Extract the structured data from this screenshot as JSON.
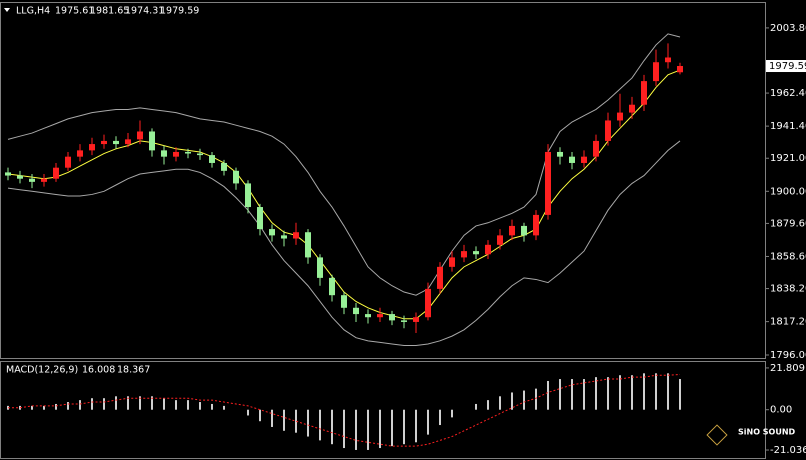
{
  "chart_data": [
    {
      "type": "candlestick",
      "title": "LLG,H4",
      "up_color": "#ff2020",
      "down_color": "#98f098",
      "open": [
        1912,
        1910,
        1908,
        1906,
        1908,
        1915,
        1922,
        1926,
        1930,
        1932,
        1930,
        1933,
        1938,
        1926,
        1922,
        1925,
        1924,
        1923,
        1918,
        1913,
        1905,
        1890,
        1876,
        1872,
        1870,
        1874,
        1858,
        1845,
        1834,
        1826,
        1822,
        1820,
        1822,
        1818,
        1817,
        1820,
        1838,
        1852,
        1858,
        1862,
        1860,
        1866,
        1872,
        1878,
        1872,
        1885,
        1925,
        1922,
        1918,
        1922,
        1932,
        1945,
        1950,
        1955,
        1970,
        1982,
        1975.61
      ],
      "high": [
        1915,
        1913,
        1911,
        1911,
        1918,
        1925,
        1930,
        1934,
        1936,
        1935,
        1937,
        1945,
        1940,
        1929,
        1928,
        1927,
        1927,
        1925,
        1920,
        1915,
        1907,
        1892,
        1879,
        1875,
        1880,
        1876,
        1860,
        1847,
        1836,
        1829,
        1825,
        1826,
        1824,
        1821,
        1823,
        1842,
        1855,
        1862,
        1866,
        1865,
        1869,
        1876,
        1882,
        1880,
        1888,
        1930,
        1928,
        1925,
        1926,
        1936,
        1950,
        1962,
        1960,
        1974,
        1990,
        1994,
        1981.65
      ],
      "low": [
        1907,
        1905,
        1902,
        1903,
        1906,
        1913,
        1919,
        1923,
        1927,
        1927,
        1928,
        1930,
        1922,
        1917,
        1919,
        1921,
        1920,
        1915,
        1910,
        1901,
        1886,
        1872,
        1868,
        1865,
        1866,
        1854,
        1840,
        1830,
        1822,
        1817,
        1816,
        1817,
        1815,
        1813,
        1810,
        1818,
        1835,
        1849,
        1855,
        1857,
        1857,
        1863,
        1869,
        1868,
        1869,
        1882,
        1917,
        1914,
        1915,
        1919,
        1929,
        1941,
        1946,
        1951,
        1967,
        1978,
        1974.31
      ],
      "close": [
        1910,
        1908,
        1906,
        1908,
        1915,
        1922,
        1926,
        1930,
        1932,
        1930,
        1933,
        1938,
        1926,
        1922,
        1925,
        1924,
        1923,
        1918,
        1913,
        1905,
        1890,
        1876,
        1872,
        1870,
        1874,
        1858,
        1845,
        1834,
        1826,
        1822,
        1820,
        1822,
        1818,
        1817,
        1820,
        1838,
        1852,
        1858,
        1862,
        1860,
        1866,
        1872,
        1878,
        1872,
        1885,
        1925,
        1922,
        1918,
        1922,
        1932,
        1945,
        1950,
        1955,
        1970,
        1982,
        1985,
        1979.59
      ],
      "overlays": [
        {
          "color": "#a8a8a8",
          "values": [
            1933,
            1935,
            1937,
            1940,
            1943,
            1946,
            1948,
            1950,
            1951,
            1952,
            1952,
            1953,
            1952,
            1951,
            1950,
            1948,
            1946,
            1945,
            1944,
            1942,
            1940,
            1938,
            1935,
            1930,
            1922,
            1912,
            1900,
            1890,
            1878,
            1865,
            1852,
            1845,
            1840,
            1836,
            1834,
            1838,
            1850,
            1862,
            1872,
            1878,
            1880,
            1883,
            1886,
            1890,
            1898,
            1925,
            1938,
            1944,
            1948,
            1952,
            1958,
            1965,
            1972,
            1983,
            1993,
            2000,
            1998
          ]
        },
        {
          "color": "#a8a8a8",
          "values": [
            1902,
            1901,
            1900,
            1899,
            1898,
            1897,
            1897,
            1898,
            1900,
            1904,
            1908,
            1911,
            1912,
            1913,
            1914,
            1914,
            1912,
            1908,
            1903,
            1896,
            1888,
            1878,
            1866,
            1856,
            1848,
            1840,
            1830,
            1820,
            1812,
            1807,
            1805,
            1804,
            1803,
            1802,
            1802,
            1803,
            1805,
            1808,
            1812,
            1818,
            1825,
            1833,
            1840,
            1845,
            1844,
            1842,
            1848,
            1855,
            1862,
            1875,
            1888,
            1898,
            1905,
            1910,
            1918,
            1926,
            1932
          ]
        },
        {
          "color": "#ffff40",
          "values": [
            1911,
            1910,
            1909,
            1908,
            1909,
            1912,
            1916,
            1920,
            1924,
            1927,
            1929,
            1932,
            1931,
            1929,
            1927,
            1926,
            1925,
            1922,
            1918,
            1912,
            1902,
            1890,
            1880,
            1874,
            1872,
            1866,
            1856,
            1846,
            1836,
            1830,
            1826,
            1823,
            1821,
            1819,
            1819,
            1825,
            1835,
            1845,
            1852,
            1856,
            1860,
            1865,
            1870,
            1872,
            1876,
            1890,
            1900,
            1908,
            1914,
            1922,
            1932,
            1940,
            1948,
            1956,
            1966,
            1974,
            1977
          ]
        }
      ],
      "ylim": [
        1796,
        2012
      ],
      "yticks": [
        {
          "value": 2003.8,
          "label": "2003.80"
        },
        {
          "value": 1962.4,
          "label": "1962.40"
        },
        {
          "value": 1941.4,
          "label": "1941.40"
        },
        {
          "value": 1921,
          "label": "1921.00"
        },
        {
          "value": 1900,
          "label": "1900.00"
        },
        {
          "value": 1879.6,
          "label": "1879.60"
        },
        {
          "value": 1858.6,
          "label": "1858.60"
        },
        {
          "value": 1838.2,
          "label": "1838.20"
        },
        {
          "value": 1817.2,
          "label": "1817.20"
        },
        {
          "value": 1796,
          "label": "1796.00"
        }
      ]
    },
    {
      "type": "macd",
      "title": "MACD(12,26,9)",
      "hist_color": "#d0d0d0",
      "signal_color": "#ff2020",
      "histogram": [
        2,
        2,
        2,
        2,
        3,
        4,
        5,
        6,
        6,
        7,
        7,
        7,
        7,
        6,
        5,
        5,
        4,
        3,
        2,
        0,
        -3,
        -6,
        -9,
        -11,
        -12,
        -14,
        -16,
        -18,
        -20,
        -21,
        -21,
        -20,
        -19,
        -18,
        -17,
        -13,
        -8,
        -4,
        0,
        3,
        5,
        7,
        9,
        10,
        11,
        15,
        16,
        16,
        16,
        17,
        17,
        18,
        18,
        19,
        19,
        19,
        16.008
      ],
      "signal": [
        1,
        1,
        2,
        2,
        2,
        3,
        3,
        4,
        4,
        5,
        6,
        6,
        6,
        6,
        6,
        6,
        5,
        5,
        4,
        3,
        2,
        0,
        -2,
        -4,
        -6,
        -8,
        -10,
        -12,
        -14,
        -16,
        -17,
        -18,
        -19,
        -19,
        -19,
        -18,
        -16,
        -14,
        -11,
        -8,
        -5,
        -2,
        1,
        4,
        6,
        9,
        11,
        13,
        14,
        15,
        16,
        16,
        17,
        17,
        18,
        18,
        18.367
      ],
      "ylim": [
        -25.2,
        24.9
      ],
      "yticks": [
        21.809,
        {
          "value": 0,
          "label": "0.00"
        },
        -21.036
      ]
    }
  ],
  "watermark": "SiNO SOUND"
}
